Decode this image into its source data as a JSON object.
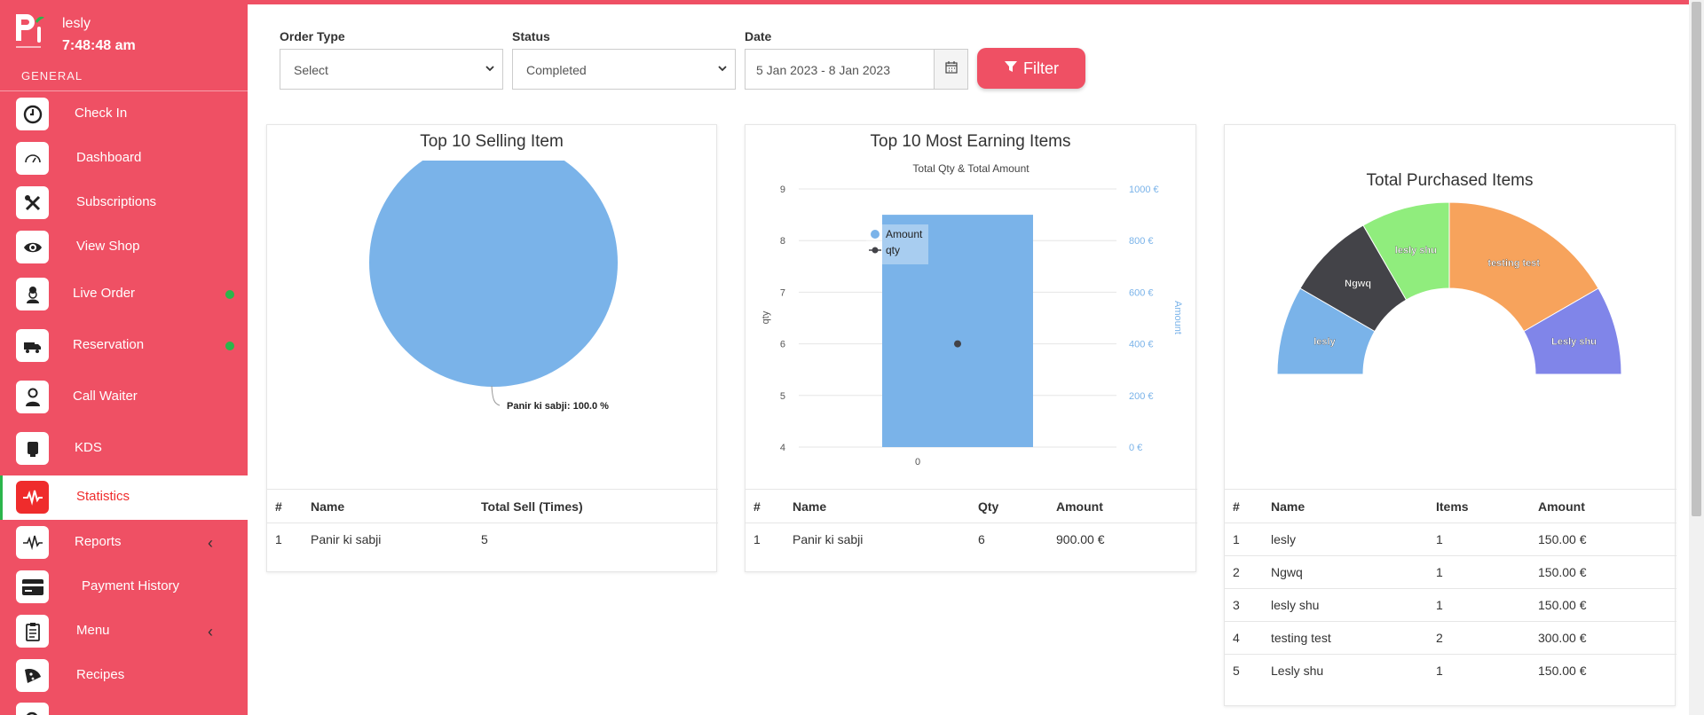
{
  "header": {
    "user_name": "lesly",
    "clock": "7:48:48 am",
    "section": "GENERAL"
  },
  "sidebar": {
    "items": [
      {
        "label": "Check In",
        "icon": "clock-icon"
      },
      {
        "label": "Dashboard",
        "icon": "gauge-icon"
      },
      {
        "label": "Subscriptions",
        "icon": "tools-icon"
      },
      {
        "label": "View Shop",
        "icon": "eye-icon"
      },
      {
        "label": "Live Order",
        "icon": "chef-icon",
        "status_dot": true
      },
      {
        "label": "Reservation",
        "icon": "truck-icon",
        "status_dot": true
      },
      {
        "label": "Call Waiter",
        "icon": "waiter-icon"
      },
      {
        "label": "KDS",
        "icon": "kds-icon"
      },
      {
        "label": "Statistics",
        "icon": "pulse-icon",
        "active": true
      },
      {
        "label": "Reports",
        "icon": "pulse-icon",
        "chevron": "‹"
      },
      {
        "label": "Payment History",
        "icon": "card-icon"
      },
      {
        "label": "Menu",
        "icon": "clipboard-icon",
        "chevron": "‹"
      },
      {
        "label": "Recipes",
        "icon": "pizza-icon"
      }
    ]
  },
  "filters": {
    "order_type_label": "Order Type",
    "order_type_value": "Select",
    "status_label": "Status",
    "status_value": "Completed",
    "date_label": "Date",
    "date_value": "5 Jan 2023 - 8 Jan 2023",
    "filter_button": "Filter"
  },
  "colors": {
    "brand": "#ef5064",
    "bar": "#7ab3e9",
    "status_dot": "#2bb54b"
  },
  "top_selling": {
    "title": "Top 10 Selling Item",
    "pie_label": "Panir ki sabji: 100.0 %",
    "columns": [
      "#",
      "Name",
      "Total Sell (Times)"
    ],
    "rows": [
      [
        "1",
        "Panir ki sabji",
        "5"
      ]
    ]
  },
  "most_earning": {
    "title": "Top 10 Most Earning Items",
    "columns": [
      "#",
      "Name",
      "Qty",
      "Amount"
    ],
    "rows": [
      [
        "1",
        "Panir ki sabji",
        "6",
        "900.00 €"
      ]
    ]
  },
  "purchased": {
    "title": "Total Purchased Items",
    "columns": [
      "#",
      "Name",
      "Items",
      "Amount"
    ],
    "rows": [
      [
        "1",
        "lesly",
        "1",
        "150.00 €"
      ],
      [
        "2",
        "Ngwq",
        "1",
        "150.00 €"
      ],
      [
        "3",
        "lesly shu",
        "1",
        "150.00 €"
      ],
      [
        "4",
        "testing test",
        "2",
        "300.00 €"
      ],
      [
        "5",
        "Lesly shu",
        "1",
        "150.00 €"
      ]
    ]
  },
  "chart_data": [
    {
      "type": "pie",
      "title": "Top 10 Selling Item",
      "categories": [
        "Panir ki sabji"
      ],
      "values": [
        100.0
      ],
      "colors": [
        "#7ab3e9"
      ]
    },
    {
      "type": "bar",
      "title": "Top 10 Most Earning Items",
      "subtitle": "Total Qty & Total Amount",
      "categories": [
        "0"
      ],
      "xlabel": "",
      "ylabel": "qty",
      "y2label": "Amount",
      "ylim": [
        4,
        9
      ],
      "y2lim": [
        0,
        1000
      ],
      "yticks": [
        "4",
        "5",
        "6",
        "7",
        "8",
        "9"
      ],
      "y2ticks": [
        "0 €",
        "200 €",
        "400 €",
        "600 €",
        "800 €",
        "1000 €"
      ],
      "series": [
        {
          "name": "Amount",
          "kind": "bar",
          "axis": "right",
          "values": [
            900
          ],
          "color": "#7ab3e9"
        },
        {
          "name": "qty",
          "kind": "line",
          "axis": "left",
          "values": [
            6
          ],
          "color": "#434348"
        }
      ],
      "legend": "top-left",
      "grid": true
    },
    {
      "type": "pie",
      "variant": "semi-donut",
      "title": "Total Purchased Items",
      "categories": [
        "lesly",
        "Ngwq",
        "lesly shu",
        "testing test",
        "Lesly shu"
      ],
      "values": [
        1,
        1,
        1,
        2,
        1
      ],
      "colors": [
        "#7ab3e9",
        "#434348",
        "#90ed7d",
        "#f7a35c",
        "#8085e9"
      ]
    }
  ]
}
